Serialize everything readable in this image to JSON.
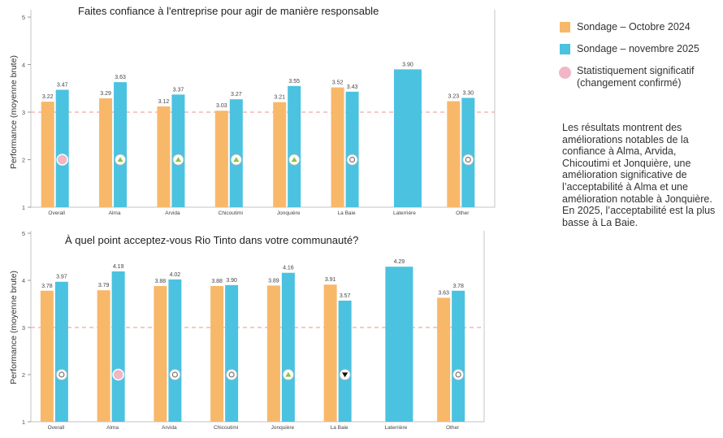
{
  "legend": {
    "items": [
      {
        "label": "Sondage – Octobre 2024",
        "color": "#F8B86A"
      },
      {
        "label": "Sondage – novembre 2025",
        "color": "#4BC2E0"
      },
      {
        "label": "Statistiquement significatif (changement confirmé)",
        "color": "#F2B6C6"
      }
    ]
  },
  "summary": "Les résultats montrent des améliorations notables de la confiance à Alma, Arvida, Chicoutimi et Jonquière, une amélioration significative de l’acceptabilité à Alma et une amélioration notable à Jonquière. En 2025, l’acceptabilité est la plus basse à La Baie.",
  "chart_data": [
    {
      "type": "bar",
      "title": "Faites confiance à l'entreprise pour agir de manière responsable",
      "ylabel": "Performance (moyenne brute)",
      "xlabel": "",
      "ylim": [
        1,
        5
      ],
      "yticks": [
        "1",
        "2",
        "3",
        "4",
        "5"
      ],
      "reference_line": 3,
      "categories": [
        "Overall",
        "Alma",
        "Arvida",
        "Chicoutimi",
        "Jonquière",
        "La Baie",
        "Laterrière",
        "Other"
      ],
      "series": [
        {
          "name": "Sondage – Octobre 2024",
          "values": [
            3.22,
            3.29,
            3.12,
            3.03,
            3.21,
            3.52,
            null,
            3.23
          ],
          "labels": [
            "3.22",
            "3.29",
            "3.12",
            "3.03",
            "3.21",
            "3.52",
            "",
            "3.23"
          ]
        },
        {
          "name": "Sondage – novembre 2025",
          "values": [
            3.47,
            3.63,
            3.37,
            3.27,
            3.55,
            3.43,
            3.9,
            3.3
          ],
          "labels": [
            "3.47",
            "3.63",
            "3.37",
            "3.27",
            "3.55",
            "3.43",
            "3.90",
            "3.30"
          ]
        }
      ],
      "markers": [
        "significant",
        "up",
        "up",
        "up",
        "up",
        "neutral",
        "",
        "neutral"
      ]
    },
    {
      "type": "bar",
      "title": "À quel point acceptez-vous Rio Tinto dans votre communauté?",
      "ylabel": "Performance (moyenne brute)",
      "xlabel": "",
      "ylim": [
        1,
        5
      ],
      "yticks": [
        "1",
        "2",
        "3",
        "4",
        "5"
      ],
      "reference_line": 3,
      "categories": [
        "Overall",
        "Alma",
        "Arvida",
        "Chicoutimi",
        "Jonquière",
        "La Baie",
        "Laterrière",
        "Other"
      ],
      "series": [
        {
          "name": "Sondage – Octobre 2024",
          "values": [
            3.78,
            3.79,
            3.88,
            3.88,
            3.89,
            3.91,
            null,
            3.63
          ],
          "labels": [
            "3.78",
            "3.79",
            "3.88",
            "3.88",
            "3.89",
            "3.91",
            "",
            "3.63"
          ]
        },
        {
          "name": "Sondage – novembre 2025",
          "values": [
            3.97,
            4.19,
            4.02,
            3.9,
            4.16,
            3.57,
            4.29,
            3.78
          ],
          "labels": [
            "3.97",
            "4.19",
            "4.02",
            "3.90",
            "4.16",
            "3.57",
            "4.29",
            "3.78"
          ]
        }
      ],
      "markers": [
        "neutral",
        "significant",
        "neutral",
        "neutral",
        "up",
        "down",
        "",
        "neutral"
      ]
    }
  ]
}
